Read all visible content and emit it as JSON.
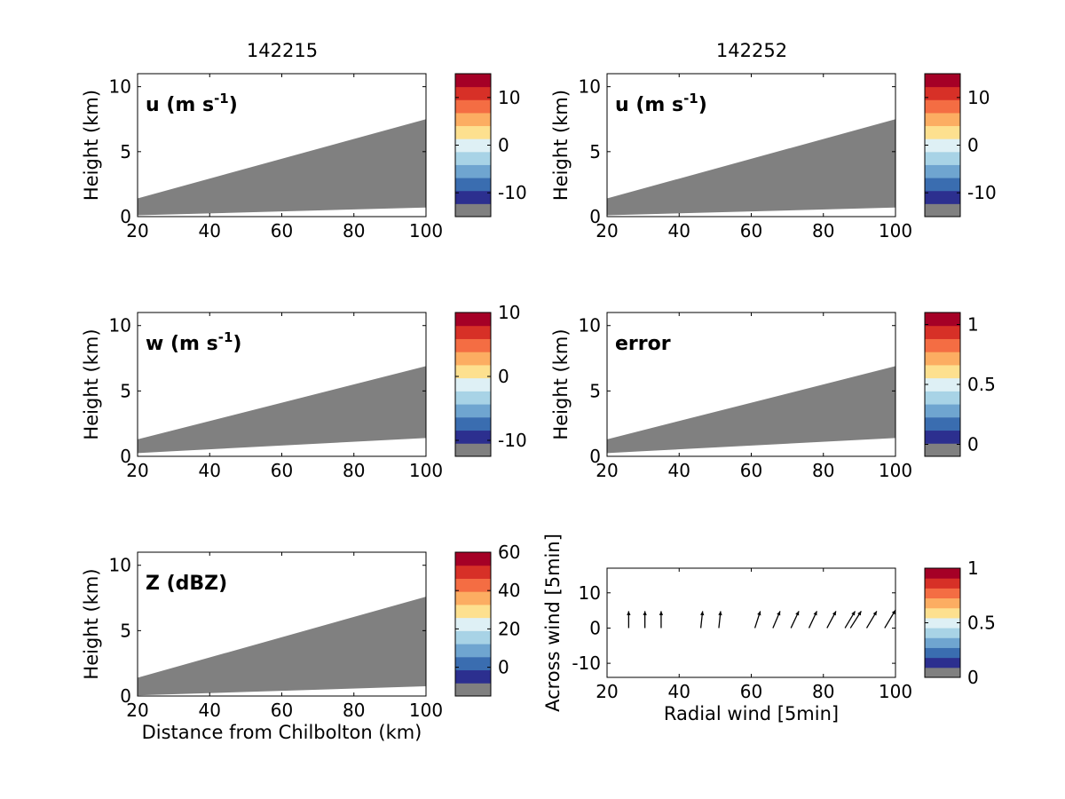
{
  "figure": {
    "column_titles": [
      "142215",
      "142252"
    ]
  },
  "colors": {
    "no_data": "#808080",
    "colormap": [
      "#2c2f8f",
      "#3a6db0",
      "#6fa5d0",
      "#a8d3e6",
      "#def0f5",
      "#fde08f",
      "#fcad62",
      "#f46d43",
      "#d73027",
      "#a50026"
    ]
  },
  "chart_data": [
    {
      "type": "heatmap",
      "panel": "top-left",
      "label": "u (m s-1)",
      "label_main": "u (m s",
      "label_sup": "-1",
      "label_tail": ")",
      "title": "142215",
      "xlabel": "",
      "ylabel": "Height (km)",
      "xlim": [
        20,
        100
      ],
      "ylim": [
        0,
        11
      ],
      "xticks": [
        "20",
        "40",
        "60",
        "80",
        "100"
      ],
      "yticks": [
        "0",
        "5",
        "10"
      ],
      "field": {
        "x": [
          20,
          100
        ],
        "top": [
          1.4,
          7.5
        ],
        "bottom": [
          0.1,
          0.7
        ],
        "value": "no data (grey)"
      },
      "colorbar": {
        "ticks": [
          "10",
          "0",
          "-10"
        ],
        "tick_values": [
          10,
          0,
          -10
        ],
        "range": [
          -15,
          15
        ]
      }
    },
    {
      "type": "heatmap",
      "panel": "top-right",
      "label": "u (m s-1)",
      "label_main": "u (m s",
      "label_sup": "-1",
      "label_tail": ")",
      "title": "142252",
      "xlabel": "",
      "ylabel": "Height (km)",
      "xlim": [
        20,
        100
      ],
      "ylim": [
        0,
        11
      ],
      "xticks": [
        "20",
        "40",
        "60",
        "80",
        "100"
      ],
      "yticks": [
        "0",
        "5",
        "10"
      ],
      "field": {
        "x": [
          20,
          100
        ],
        "top": [
          1.4,
          7.5
        ],
        "bottom": [
          0.1,
          0.7
        ],
        "value": "no data (grey)"
      },
      "colorbar": {
        "ticks": [
          "10",
          "0",
          "-10"
        ],
        "tick_values": [
          10,
          0,
          -10
        ],
        "range": [
          -15,
          15
        ]
      }
    },
    {
      "type": "heatmap",
      "panel": "middle-left",
      "label": "w (m s-1)",
      "label_main": "w (m s",
      "label_sup": "-1",
      "label_tail": ")",
      "xlabel": "",
      "ylabel": "Height (km)",
      "xlim": [
        20,
        100
      ],
      "ylim": [
        0,
        11
      ],
      "xticks": [
        "20",
        "40",
        "60",
        "80",
        "100"
      ],
      "yticks": [
        "0",
        "5",
        "10"
      ],
      "field": {
        "x": [
          20,
          100
        ],
        "top": [
          1.3,
          6.9
        ],
        "bottom": [
          0.25,
          1.4
        ],
        "value": "no data (grey)"
      },
      "colorbar": {
        "ticks": [
          "10",
          "0",
          "-10"
        ],
        "tick_values": [
          10,
          0,
          -10
        ],
        "range": [
          -12.5,
          10
        ]
      }
    },
    {
      "type": "heatmap",
      "panel": "middle-right",
      "label": "error",
      "label_main": "error",
      "label_sup": "",
      "label_tail": "",
      "xlabel": "",
      "ylabel": "Height (km)",
      "xlim": [
        20,
        100
      ],
      "ylim": [
        0,
        11
      ],
      "xticks": [
        "20",
        "40",
        "60",
        "80",
        "100"
      ],
      "yticks": [
        "0",
        "5",
        "10"
      ],
      "field": {
        "x": [
          20,
          100
        ],
        "top": [
          1.3,
          6.9
        ],
        "bottom": [
          0.25,
          1.4
        ],
        "value": "no data (grey)"
      },
      "colorbar": {
        "ticks": [
          "1",
          "0.5",
          "0"
        ],
        "tick_values": [
          1,
          0.5,
          0
        ],
        "range": [
          -0.1,
          1.1
        ]
      }
    },
    {
      "type": "heatmap",
      "panel": "bottom-left",
      "label": "Z (dBZ)",
      "label_main": "Z (dBZ)",
      "label_sup": "",
      "label_tail": "",
      "xlabel": "Distance from Chilbolton (km)",
      "ylabel": "Height (km)",
      "xlim": [
        20,
        100
      ],
      "ylim": [
        0,
        11
      ],
      "xticks": [
        "20",
        "40",
        "60",
        "80",
        "100"
      ],
      "yticks": [
        "0",
        "5",
        "10"
      ],
      "field": {
        "x": [
          20,
          100
        ],
        "top": [
          1.4,
          7.6
        ],
        "bottom": [
          0.05,
          0.75
        ],
        "value": "no data (grey)"
      },
      "colorbar": {
        "ticks": [
          "60",
          "40",
          "20",
          "0"
        ],
        "tick_values": [
          60,
          40,
          20,
          0
        ],
        "range": [
          -15,
          60
        ]
      }
    },
    {
      "type": "scatter",
      "panel": "bottom-right",
      "subtype": "quiver",
      "xlabel": "Radial wind [5min]",
      "ylabel": "Across wind [5min]",
      "xlim": [
        20,
        100
      ],
      "ylim": [
        -14,
        17
      ],
      "xticks": [
        "20",
        "40",
        "60",
        "80",
        "100"
      ],
      "yticks": [
        "10",
        "0",
        "-10"
      ],
      "vectors": [
        {
          "x": 26,
          "y": 0,
          "u": 0.0,
          "v": 3.0
        },
        {
          "x": 30.5,
          "y": 0,
          "u": 0.0,
          "v": 3.0
        },
        {
          "x": 35,
          "y": 0,
          "u": 0.0,
          "v": 3.0
        },
        {
          "x": 46,
          "y": 0,
          "u": 0.5,
          "v": 3.0
        },
        {
          "x": 51,
          "y": 0,
          "u": 0.5,
          "v": 3.0
        },
        {
          "x": 61,
          "y": 0,
          "u": 1.5,
          "v": 3.0
        },
        {
          "x": 66,
          "y": 0,
          "u": 2.0,
          "v": 3.0
        },
        {
          "x": 71,
          "y": 0,
          "u": 2.2,
          "v": 3.0
        },
        {
          "x": 76,
          "y": 0,
          "u": 2.2,
          "v": 3.0
        },
        {
          "x": 81,
          "y": 0,
          "u": 2.5,
          "v": 3.0
        },
        {
          "x": 86,
          "y": 0,
          "u": 2.8,
          "v": 3.0
        },
        {
          "x": 87.5,
          "y": 0,
          "u": 3.0,
          "v": 3.0
        },
        {
          "x": 92,
          "y": 0,
          "u": 2.8,
          "v": 3.0
        },
        {
          "x": 97,
          "y": 0,
          "u": 3.0,
          "v": 3.2
        }
      ],
      "colorbar": {
        "ticks": [
          "1",
          "0.5",
          "0"
        ],
        "tick_values": [
          1,
          0.5,
          0
        ],
        "range": [
          0,
          1
        ]
      }
    }
  ]
}
